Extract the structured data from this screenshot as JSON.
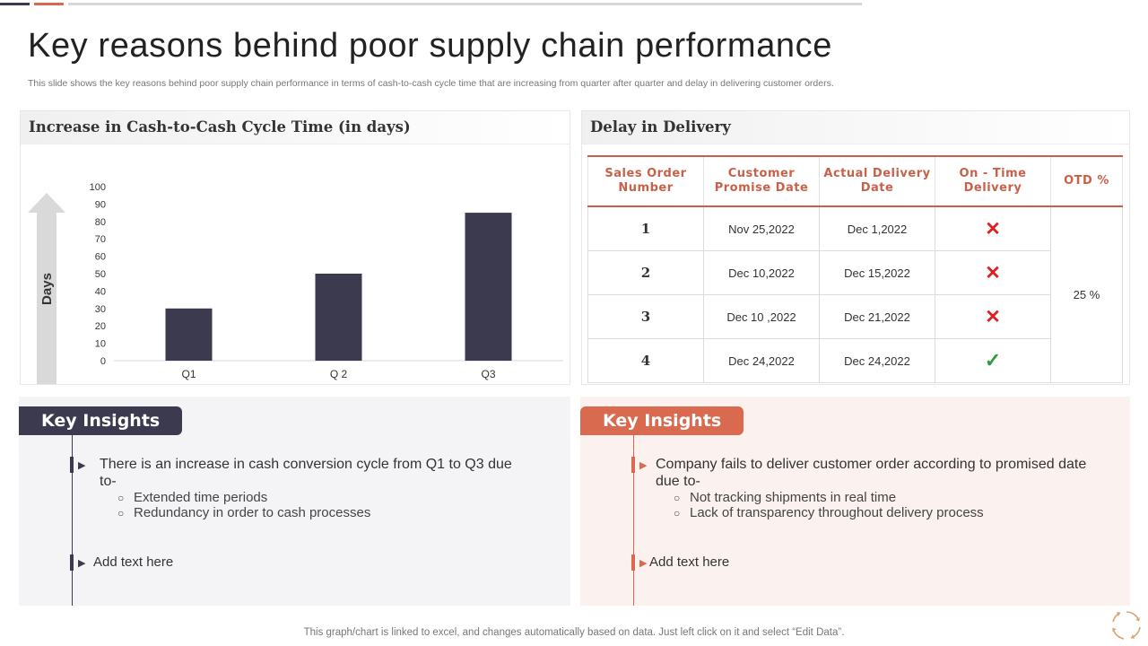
{
  "slide": {
    "title": "Key reasons behind poor supply chain performance",
    "subtitle": "This slide shows the key reasons behind poor supply chain performance in terms of cash-to-cash cycle time that are increasing from quarter after quarter and delay in delivering customer orders.",
    "footer": "This graph/chart is linked to excel,  and changes automatically based on data. Just left click on it and select “Edit Data”."
  },
  "left_panel": {
    "heading": "Increase in Cash-to-Cash Cycle Time (in days)"
  },
  "chart_data": {
    "type": "bar",
    "title": "Increase in Cash-to-Cash Cycle Time (in days)",
    "categories": [
      "Q1",
      "Q 2",
      "Q3"
    ],
    "values": [
      30,
      50,
      85
    ],
    "xlabel": "",
    "ylabel": "Days",
    "ylim": [
      0,
      100
    ],
    "yticks": [
      0,
      10,
      20,
      30,
      40,
      50,
      60,
      70,
      80,
      90,
      100
    ],
    "grid": false,
    "bar_color": "#3b3a4e"
  },
  "right_panel": {
    "heading": "Delay in Delivery",
    "table": {
      "headers": [
        "Sales Order Number",
        "Customer Promise Date",
        "Actual Delivery Date",
        "On - Time Delivery",
        "OTD  %"
      ],
      "rows": [
        {
          "order": "1",
          "promise": "Nov 25,2022",
          "actual": "Dec 1,2022",
          "on_time": "cross-icon"
        },
        {
          "order": "2",
          "promise": "Dec 10,2022",
          "actual": "Dec 15,2022",
          "on_time": "cross-icon"
        },
        {
          "order": "3",
          "promise": "Dec 10 ,2022",
          "actual": "Dec 21,2022",
          "on_time": "cross-icon"
        },
        {
          "order": "4",
          "promise": "Dec 24,2022",
          "actual": "Dec 24,2022",
          "on_time": "check-icon"
        }
      ],
      "otd": "25 %"
    }
  },
  "insights_left": {
    "badge": "Key Insights",
    "point1": "There is an increase in cash conversion cycle from Q1 to Q3 due to-",
    "sub1": "Extended time periods",
    "sub2": "Redundancy in order to cash processes",
    "add": "Add text here"
  },
  "insights_right": {
    "badge": "Key Insights",
    "point1": "Company fails to deliver customer order according to promised date due to-",
    "sub1": "Not tracking shipments in real time",
    "sub2": "Lack of transparency throughout delivery process",
    "add": "Add text here"
  },
  "colors": {
    "dark": "#3b3a4e",
    "accent": "#d9694f",
    "cross": "#e02020",
    "check": "#2e9c3a"
  }
}
